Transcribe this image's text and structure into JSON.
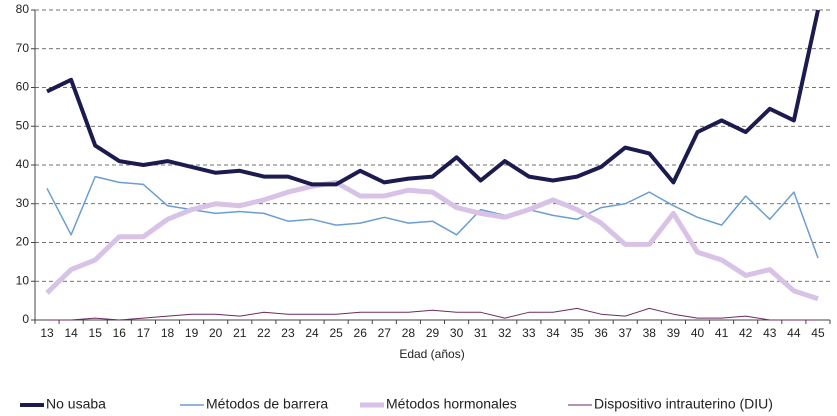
{
  "chart_data": {
    "type": "line",
    "x_label": "Edad (años)",
    "categories": [
      "13",
      "14",
      "15",
      "16",
      "17",
      "18",
      "19",
      "20",
      "21",
      "22",
      "23",
      "24",
      "25",
      "26",
      "27",
      "28",
      "29",
      "30",
      "31",
      "32",
      "33",
      "34",
      "35",
      "36",
      "37",
      "38",
      "39",
      "40",
      "41",
      "42",
      "43",
      "44",
      "45"
    ],
    "series": [
      {
        "name": "No usaba",
        "color": "#1b1b4f",
        "values": [
          59,
          62,
          45,
          41,
          40,
          41,
          39.5,
          38,
          38.5,
          37,
          37,
          35,
          35,
          38.5,
          35.5,
          36.5,
          37,
          42,
          36,
          41,
          37,
          36,
          37,
          39.5,
          44.5,
          43,
          35.5,
          48.5,
          51.5,
          48.5,
          54.5,
          51.5,
          80
        ]
      },
      {
        "name": "Métodos de barrera",
        "color": "#6b9ed0",
        "values": [
          34,
          22,
          37,
          35.5,
          35,
          29.5,
          28.5,
          27.5,
          28,
          27.5,
          25.5,
          26,
          24.5,
          25,
          26.5,
          25,
          25.5,
          22,
          28.5,
          27,
          28.5,
          27,
          26,
          29,
          30,
          33,
          29.5,
          26.5,
          24.5,
          32,
          26,
          33,
          16
        ]
      },
      {
        "name": "Métodos hormonales",
        "color": "#d8c3e6",
        "values": [
          7,
          13,
          15.5,
          21.5,
          21.5,
          26,
          28.5,
          30,
          29.5,
          31,
          33,
          34.5,
          35.5,
          32,
          32,
          33.5,
          33,
          29,
          27.5,
          26.5,
          28.5,
          31,
          28.5,
          25,
          19.5,
          19.5,
          27.5,
          17.5,
          15.5,
          11.5,
          13,
          7.5,
          5.5
        ]
      },
      {
        "name": "Dispositivo intrauterino (DIU)",
        "color": "#6e2a5f",
        "values": [
          0,
          0,
          0.5,
          0,
          0.5,
          1,
          1.5,
          1.5,
          1,
          2,
          1.5,
          1.5,
          1.5,
          2,
          2,
          2,
          2.5,
          2,
          2,
          0.5,
          2,
          2,
          3,
          1.5,
          1,
          3,
          1.5,
          0.5,
          0.5,
          1,
          0,
          0,
          0
        ]
      }
    ],
    "ylim": [
      0,
      80
    ],
    "yticks": [
      0,
      10,
      20,
      30,
      40,
      50,
      60,
      70,
      80
    ],
    "grid": true,
    "legend": "bottom"
  }
}
